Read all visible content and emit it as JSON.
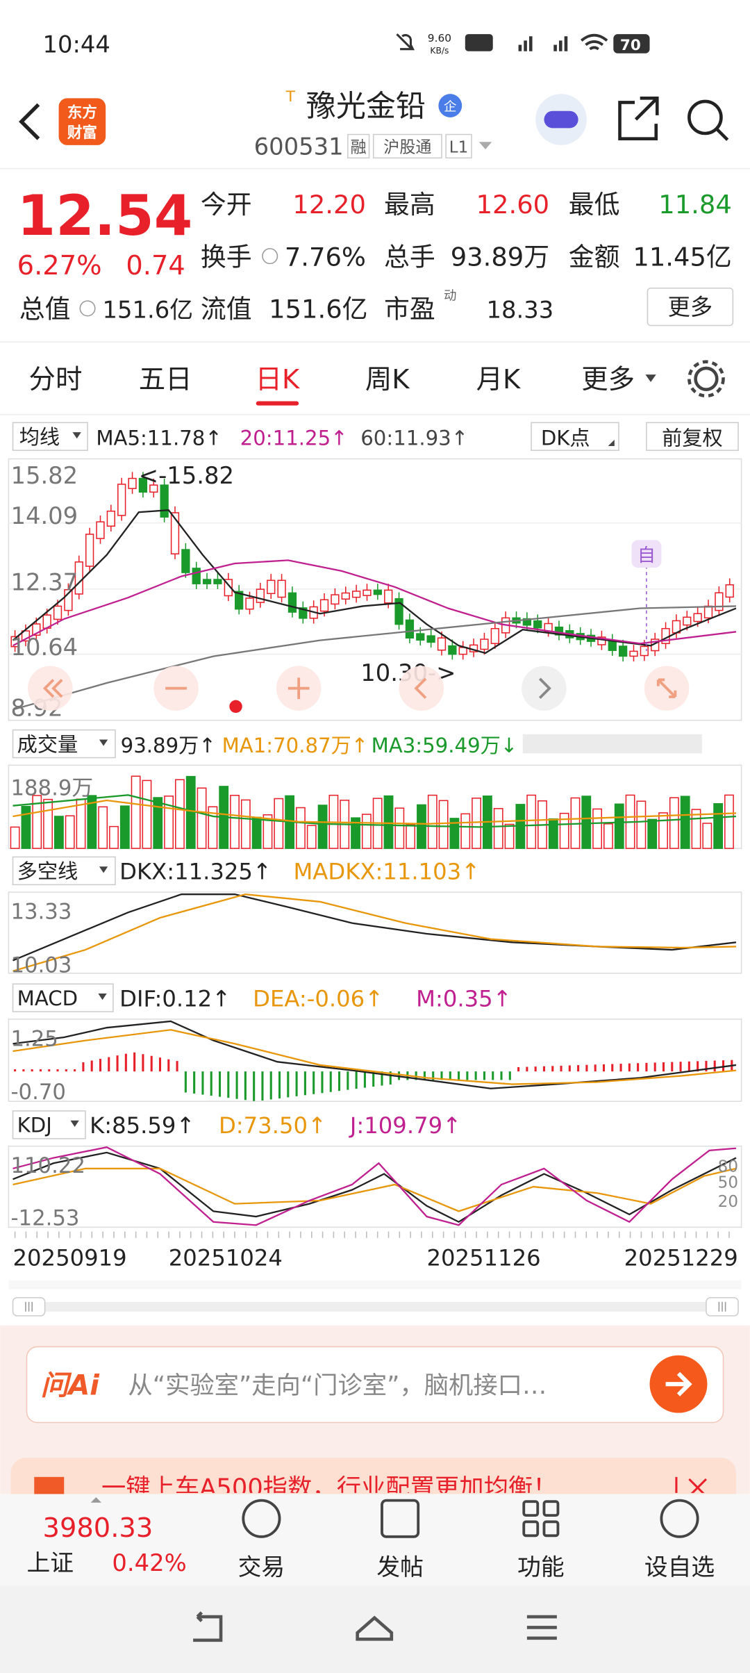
{
  "status_bar": {
    "time": "10:44",
    "net_speed": "9.60",
    "net_unit": "KB/s",
    "battery": "70"
  },
  "header": {
    "logo_line1": "东方",
    "logo_line2": "财富",
    "tag": "T",
    "title": "豫光金铅",
    "badge": "企",
    "code": "600531",
    "flags": [
      "融",
      "沪股通",
      "L1"
    ]
  },
  "quote": {
    "price": "12.54",
    "change_pct": "6.27%",
    "change": "0.74",
    "stats": [
      {
        "label": "今开",
        "value": "12.20"
      },
      {
        "label": "最高",
        "value": "12.60"
      },
      {
        "label": "最低",
        "value": "11.84"
      },
      {
        "label": "换手",
        "value": "7.76%"
      },
      {
        "label": "总手",
        "value": "93.89万"
      },
      {
        "label": "金额",
        "value": "11.45亿"
      },
      {
        "label": "总值",
        "value": "151.6亿"
      },
      {
        "label": "流值",
        "value": "151.6亿"
      },
      {
        "label": "市盈",
        "label_sup": "动",
        "value": "18.33"
      }
    ],
    "more": "更多"
  },
  "tabs": [
    "分时",
    "五日",
    "日K",
    "周K",
    "月K",
    "更多"
  ],
  "kline": {
    "selector": "均线",
    "ma5": "MA5:11.78↑",
    "ma20": "20:11.25↑",
    "ma60": "60:11.93↑",
    "dk": "DK点",
    "adjust": "前复权",
    "y_labels": [
      "15.82",
      "14.09",
      "12.37",
      "10.64",
      "8.92"
    ],
    "high_note": "<-15.82",
    "low_note": "10.30->",
    "marker": "自"
  },
  "volume": {
    "selector": "成交量",
    "value": "93.89万↑",
    "ma1": "MA1:70.87万↑",
    "ma3": "MA3:59.49万↓",
    "y_label": "188.9万"
  },
  "dkx": {
    "selector": "多空线",
    "dkx": "DKX:11.325↑",
    "madkx": "MADKX:11.103↑",
    "y_labels": [
      "13.33",
      "10.03"
    ]
  },
  "macd": {
    "selector": "MACD",
    "dif": "DIF:0.12↑",
    "dea": "DEA:-0.06↑",
    "m": "M:0.35↑",
    "y_labels": [
      "1.25",
      "-0.70"
    ]
  },
  "kdj": {
    "selector": "KDJ",
    "k": "K:85.59↑",
    "d": "D:73.50↑",
    "j": "J:109.79↑",
    "y_labels": [
      "110.22",
      "-12.53"
    ],
    "levels": [
      "80",
      "50",
      "20"
    ]
  },
  "dates": [
    "20250919",
    "20251024",
    "20251126",
    "20251229"
  ],
  "ai_bar": {
    "brand": "问Ai",
    "prompt": "从“实验室”走向“门诊室”，脑机接口…"
  },
  "banner": "一键上车A500指数，行业配置更加均衡！",
  "bottom_nav": {
    "index_value": "3980.33",
    "index_name": "上证",
    "index_change": "0.42%",
    "items": [
      "交易",
      "发帖",
      "功能",
      "设自选"
    ]
  }
}
